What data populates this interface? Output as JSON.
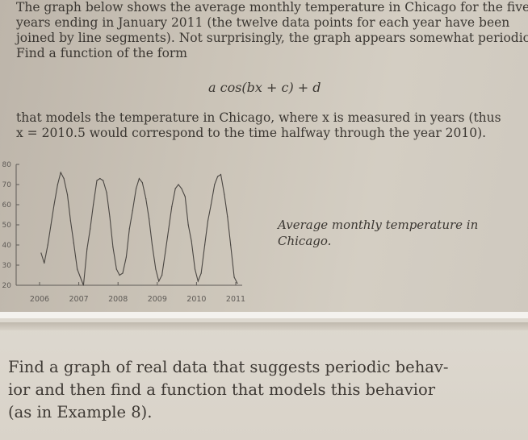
{
  "paragraph1": [
    "The graph below shows the average monthly temperature in Chicago for the five",
    "years ending in January 2011 (the twelve data points for each year have been",
    "joined by line segments). Not surprisingly, the graph appears somewhat periodic.",
    "Find a function of the form"
  ],
  "formula": "a cos(bx + c) + d",
  "paragraph2": [
    "that models the temperature in Chicago, where x is measured in years (thus",
    "x = 2010.5 would correspond to the time halfway through the year 2010)."
  ],
  "caption": [
    "Average monthly temperature in",
    "Chicago."
  ],
  "paragraph3": [
    "Find a graph of real data that suggests periodic behav-",
    "ior and then find a function that models this behavior",
    "(as in Example 8)."
  ],
  "chart_data": {
    "type": "line",
    "title": "",
    "xlabel": "",
    "ylabel": "",
    "xlim": [
      2006,
      2011
    ],
    "ylim": [
      20,
      80
    ],
    "xticks": [
      "2006",
      "2007",
      "2008",
      "2009",
      "2010",
      "2011"
    ],
    "yticks": [
      "20",
      "30",
      "40",
      "50",
      "60",
      "70",
      "80"
    ],
    "grid": false,
    "series": [
      {
        "x": [
          2006.04,
          2006.12,
          2006.21,
          2006.29,
          2006.37,
          2006.46,
          2006.54,
          2006.62,
          2006.71,
          2006.79,
          2006.87,
          2006.96,
          2007.04,
          2007.12,
          2007.21,
          2007.29,
          2007.37,
          2007.46,
          2007.54,
          2007.62,
          2007.71,
          2007.79,
          2007.87,
          2007.96,
          2008.04,
          2008.12,
          2008.21,
          2008.29,
          2008.37,
          2008.46,
          2008.54,
          2008.62,
          2008.71,
          2008.79,
          2008.87,
          2008.96,
          2009.04,
          2009.12,
          2009.21,
          2009.29,
          2009.37,
          2009.46,
          2009.54,
          2009.62,
          2009.71,
          2009.79,
          2009.87,
          2009.96,
          2010.04,
          2010.12,
          2010.21,
          2010.29,
          2010.37,
          2010.46,
          2010.54,
          2010.62,
          2010.71,
          2010.79,
          2010.87,
          2010.96,
          2011.04
        ],
        "values": [
          36,
          31,
          40,
          50,
          60,
          70,
          76,
          73,
          65,
          52,
          41,
          28,
          24,
          20,
          38,
          48,
          60,
          72,
          73,
          72,
          66,
          54,
          39,
          28,
          25,
          26,
          34,
          48,
          57,
          68,
          73,
          71,
          63,
          53,
          40,
          28,
          22,
          25,
          37,
          48,
          59,
          68,
          70,
          68,
          64,
          50,
          42,
          28,
          22,
          26,
          40,
          52,
          60,
          70,
          74,
          75,
          65,
          54,
          40,
          24,
          21
        ]
      }
    ]
  }
}
